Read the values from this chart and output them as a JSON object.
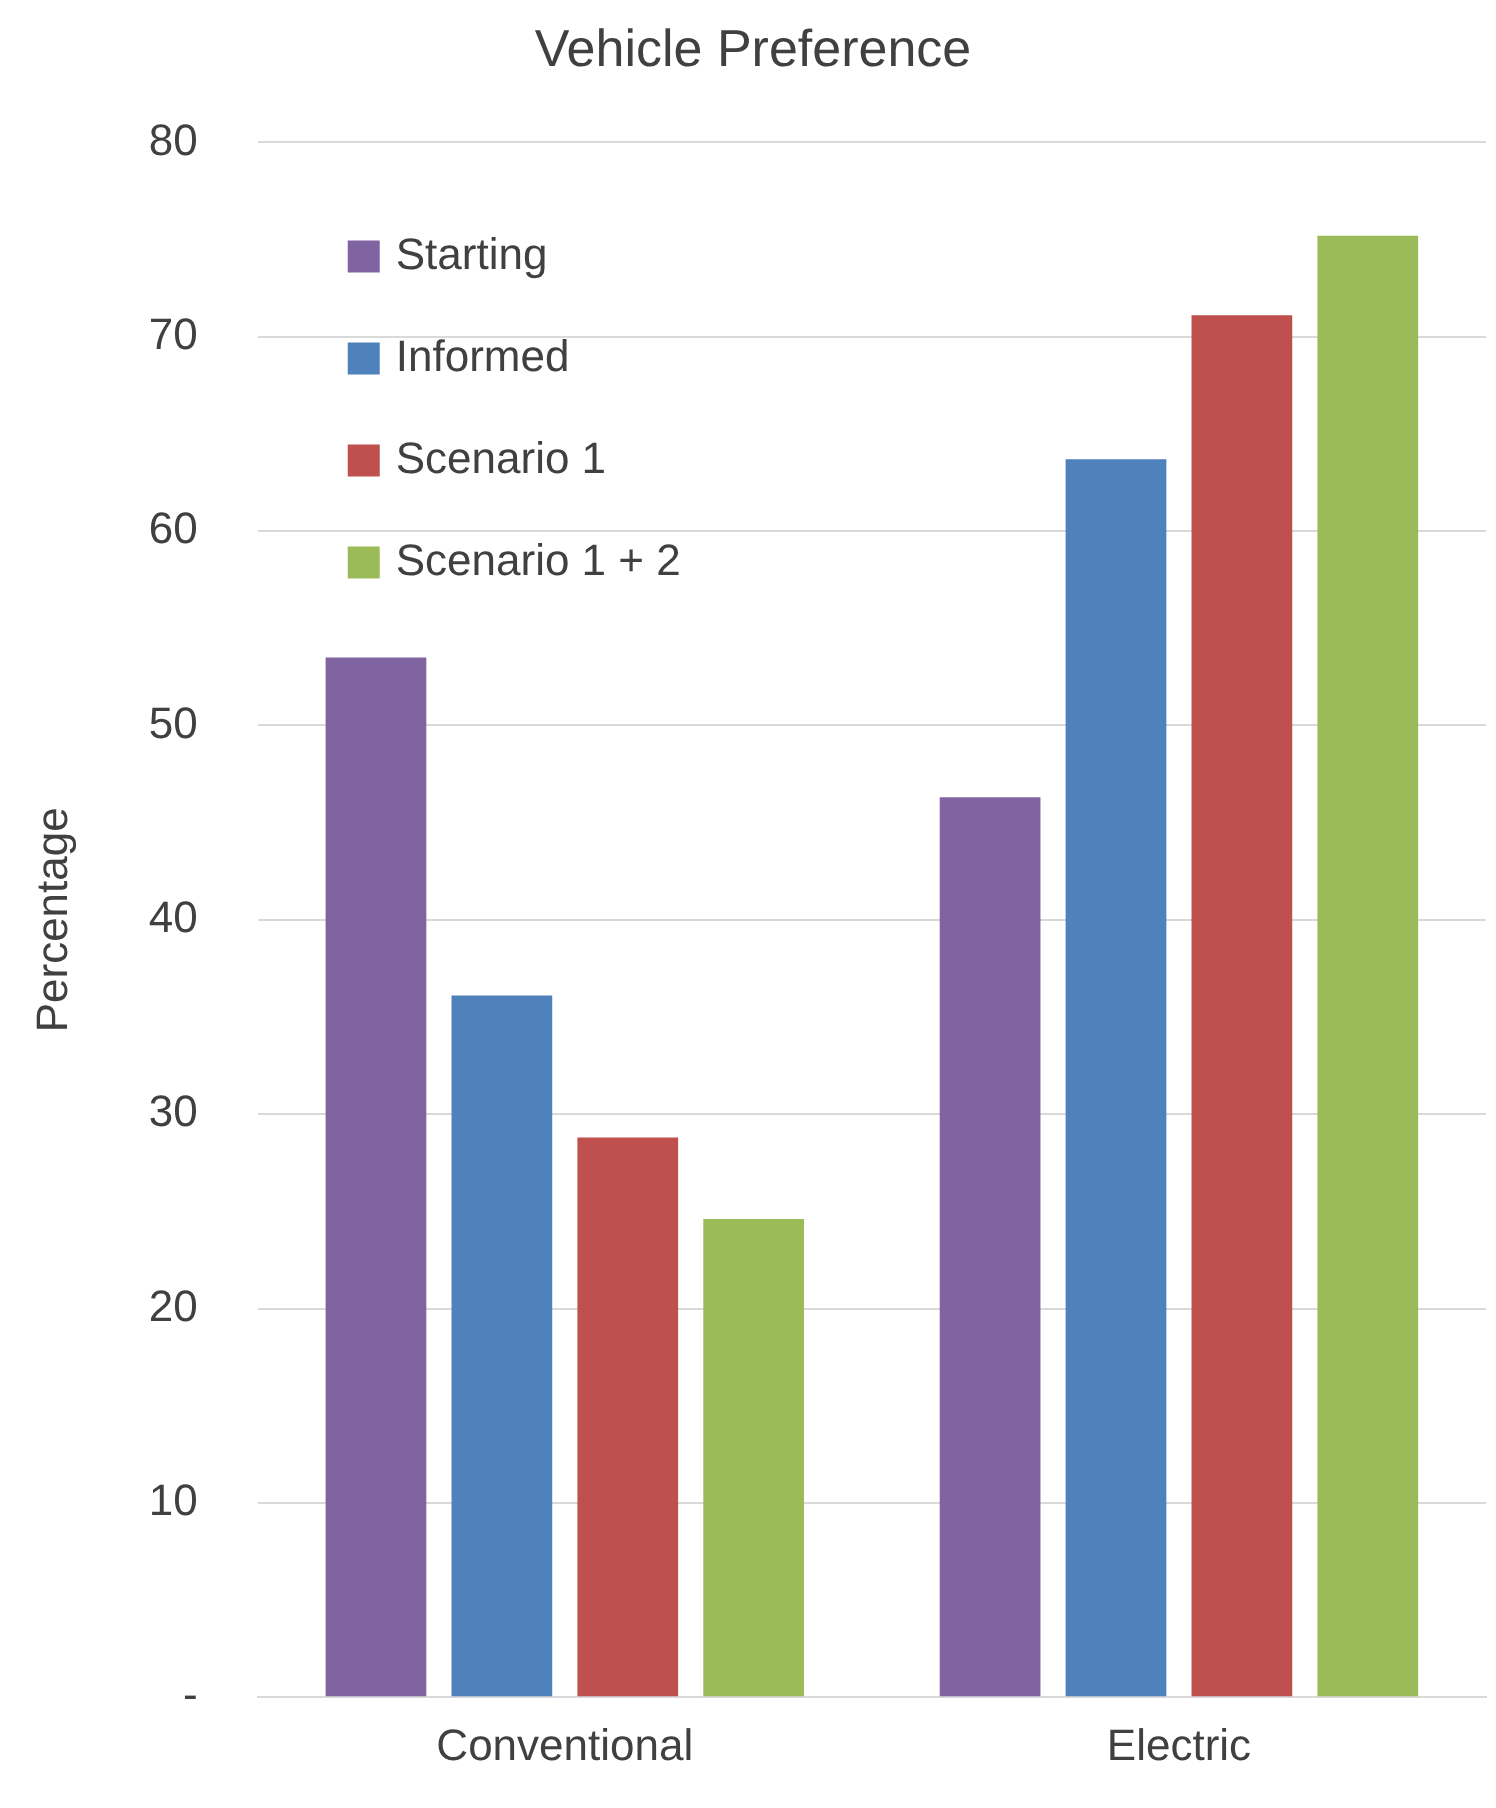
{
  "chart_data": {
    "type": "bar",
    "title": "Vehicle Preference",
    "ylabel": "Percentage",
    "categories": [
      "Conventional",
      "Electric"
    ],
    "series": [
      {
        "name": "Starting",
        "color": "#8064a2",
        "values": [
          53.5,
          46.3
        ]
      },
      {
        "name": "Informed",
        "color": "#4f81bd",
        "values": [
          36.1,
          63.7
        ]
      },
      {
        "name": "Scenario 1",
        "color": "#c0504d",
        "values": [
          28.8,
          71.1
        ]
      },
      {
        "name": "Scenario 1 + 2",
        "color": "#9bbb59",
        "values": [
          24.6,
          75.2
        ]
      }
    ],
    "ylim": [
      0,
      80
    ],
    "yticks": [
      {
        "value": 0,
        "label": "-"
      },
      10,
      20,
      30,
      40,
      50,
      60,
      70,
      80
    ],
    "grid": "y",
    "legend": "top left"
  }
}
